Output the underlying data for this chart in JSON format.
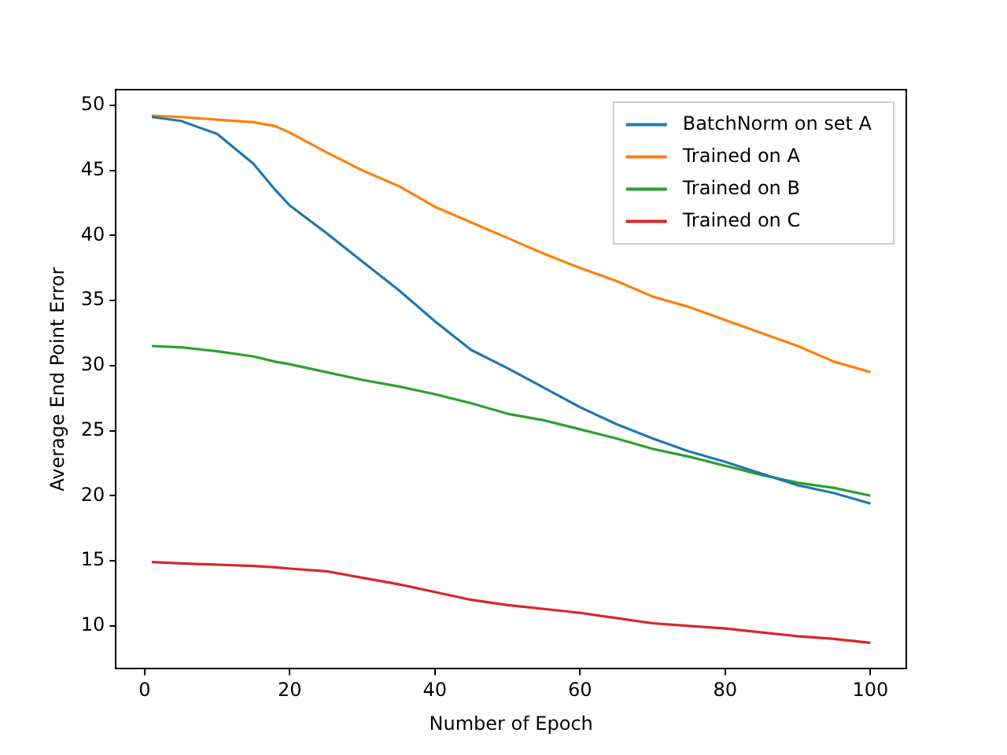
{
  "chart_data": {
    "type": "line",
    "xlabel": "Number of Epoch",
    "ylabel": "Average End Point Error",
    "x": [
      1,
      5,
      10,
      15,
      18,
      20,
      25,
      30,
      35,
      40,
      45,
      50,
      55,
      60,
      65,
      70,
      75,
      80,
      85,
      90,
      95,
      100
    ],
    "xlim": [
      -3.95,
      104.95
    ],
    "xticks": [
      0,
      20,
      40,
      60,
      80,
      100
    ],
    "ylim": [
      6.7,
      51.2
    ],
    "yticks": [
      10,
      15,
      20,
      25,
      30,
      35,
      40,
      45,
      50
    ],
    "grid": false,
    "legend": "top right",
    "marker": "none",
    "line_style": "solid",
    "series": [
      {
        "name": "BatchNorm on set A",
        "color": "#1f77b4",
        "values": [
          49.1,
          48.8,
          47.8,
          45.5,
          43.5,
          42.3,
          40.2,
          38,
          35.8,
          33.4,
          31.2,
          29.8,
          28.3,
          26.8,
          25.5,
          24.4,
          23.4,
          22.6,
          21.7,
          20.8,
          20.2,
          19.4
        ]
      },
      {
        "name": "Trained on A",
        "color": "#ff7f0e",
        "values": [
          49.2,
          49.1,
          48.9,
          48.7,
          48.4,
          47.9,
          46.4,
          45,
          43.8,
          42.2,
          41,
          39.8,
          38.6,
          37.5,
          36.5,
          35.3,
          34.5,
          33.5,
          32.5,
          31.5,
          30.3,
          29.5
        ]
      },
      {
        "name": "Trained on B",
        "color": "#2ca02c",
        "values": [
          31.5,
          31.4,
          31.1,
          30.7,
          30.3,
          30.1,
          29.5,
          28.9,
          28.4,
          27.8,
          27.1,
          26.3,
          25.8,
          25.1,
          24.4,
          23.6,
          23,
          22.3,
          21.6,
          21,
          20.6,
          20
        ]
      },
      {
        "name": "Trained on C",
        "color": "#d62728",
        "values": [
          14.9,
          14.8,
          14.7,
          14.6,
          14.5,
          14.4,
          14.2,
          13.7,
          13.2,
          12.6,
          12,
          11.6,
          11.3,
          11,
          10.6,
          10.2,
          10,
          9.8,
          9.5,
          9.2,
          9,
          8.7
        ]
      }
    ]
  }
}
